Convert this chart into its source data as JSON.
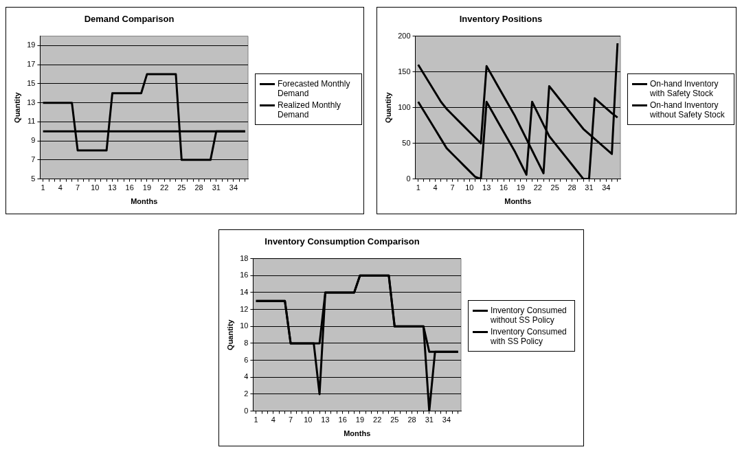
{
  "chart_data": [
    {
      "type": "line",
      "title": "Demand Comparison",
      "xlabel": "Months",
      "ylabel": "Quantity",
      "categories": [
        "1",
        null,
        null,
        "4",
        null,
        null,
        "7",
        null,
        null,
        "10",
        null,
        null,
        "13",
        null,
        null,
        "16",
        null,
        null,
        "19",
        null,
        null,
        "22",
        null,
        null,
        "25",
        null,
        null,
        "28",
        null,
        null,
        "31",
        null,
        null,
        "34",
        null,
        null
      ],
      "series": [
        {
          "name": "Forecasted Monthly Demand",
          "color": "#000000",
          "values": [
            10,
            10,
            10,
            10,
            10,
            10,
            10,
            10,
            10,
            10,
            10,
            10,
            10,
            10,
            10,
            10,
            10,
            10,
            10,
            10,
            10,
            10,
            10,
            10,
            10,
            10,
            10,
            10,
            10,
            10,
            10,
            10,
            10,
            10,
            10,
            10
          ]
        },
        {
          "name": "Realized Monthly Demand",
          "color": "#000000",
          "values": [
            13,
            13,
            13,
            13,
            13,
            13,
            8,
            8,
            8,
            8,
            8,
            8,
            14,
            14,
            14,
            14,
            14,
            14,
            16,
            16,
            16,
            16,
            16,
            16,
            7,
            7,
            7,
            7,
            7,
            7,
            10,
            10,
            10,
            10,
            10,
            10
          ]
        }
      ],
      "ylim": [
        5,
        20
      ],
      "yticks": [
        5,
        7,
        9,
        11,
        13,
        15,
        17,
        19
      ],
      "grid": "y",
      "legend": "right",
      "marker": "none",
      "line_style": "solid"
    },
    {
      "type": "line",
      "title": "Inventory Positions",
      "xlabel": "Months",
      "ylabel": "Quantity",
      "categories": [
        "1",
        null,
        null,
        "4",
        null,
        null,
        "7",
        null,
        null,
        "10",
        null,
        null,
        "13",
        null,
        null,
        "16",
        null,
        null,
        "19",
        null,
        null,
        "22",
        null,
        null,
        "25",
        null,
        null,
        "28",
        null,
        null,
        "31",
        null,
        null,
        "34",
        null,
        null
      ],
      "series": [
        {
          "name": "On-hand Inventory with Safety Stock",
          "color": "#000000",
          "values": [
            160,
            147,
            134,
            121,
            108,
            98,
            90,
            82,
            74,
            66,
            58,
            50,
            158,
            144,
            130,
            116,
            102,
            88,
            72,
            56,
            40,
            24,
            8,
            130,
            120,
            110,
            100,
            90,
            80,
            70,
            63,
            56,
            49,
            42,
            35,
            190
          ]
        },
        {
          "name": "On-hand Inventory without Safety Stock",
          "color": "#000000",
          "values": [
            108,
            95,
            82,
            69,
            56,
            43,
            35,
            27,
            19,
            11,
            3,
            0,
            108,
            94,
            80,
            66,
            52,
            38,
            22,
            6,
            108,
            92,
            76,
            60,
            50,
            40,
            30,
            20,
            10,
            0,
            0,
            113,
            106,
            99,
            92,
            86
          ]
        }
      ],
      "ylim": [
        0,
        200
      ],
      "yticks": [
        0,
        50,
        100,
        150,
        200
      ],
      "grid": "y",
      "legend": "right",
      "marker": "none",
      "line_style": "solid"
    },
    {
      "type": "line",
      "title": "Inventory Consumption Comparison",
      "xlabel": "Months",
      "ylabel": "Quantity",
      "categories": [
        "1",
        null,
        null,
        "4",
        null,
        null,
        "7",
        null,
        null,
        "10",
        null,
        null,
        "13",
        null,
        null,
        "16",
        null,
        null,
        "19",
        null,
        null,
        "22",
        null,
        null,
        "25",
        null,
        null,
        "28",
        null,
        null,
        "31",
        null,
        null,
        "34",
        null,
        null
      ],
      "series": [
        {
          "name": "Inventory Consumed without SS Policy",
          "color": "#000000",
          "values": [
            13,
            13,
            13,
            13,
            13,
            13,
            8,
            8,
            8,
            8,
            8,
            2,
            14,
            14,
            14,
            14,
            14,
            14,
            16,
            16,
            16,
            16,
            16,
            16,
            10,
            10,
            10,
            10,
            10,
            10,
            0,
            7,
            7,
            7,
            7,
            7
          ]
        },
        {
          "name": "Inventory Consumed with SS Policy",
          "color": "#000000",
          "values": [
            13,
            13,
            13,
            13,
            13,
            13,
            8,
            8,
            8,
            8,
            8,
            8,
            14,
            14,
            14,
            14,
            14,
            14,
            16,
            16,
            16,
            16,
            16,
            16,
            10,
            10,
            10,
            10,
            10,
            10,
            7,
            7,
            7,
            7,
            7,
            7
          ]
        }
      ],
      "ylim": [
        0,
        18
      ],
      "yticks": [
        0,
        2,
        4,
        6,
        8,
        10,
        12,
        14,
        16,
        18
      ],
      "grid": "y",
      "legend": "right",
      "marker": "none",
      "line_style": "solid"
    }
  ]
}
